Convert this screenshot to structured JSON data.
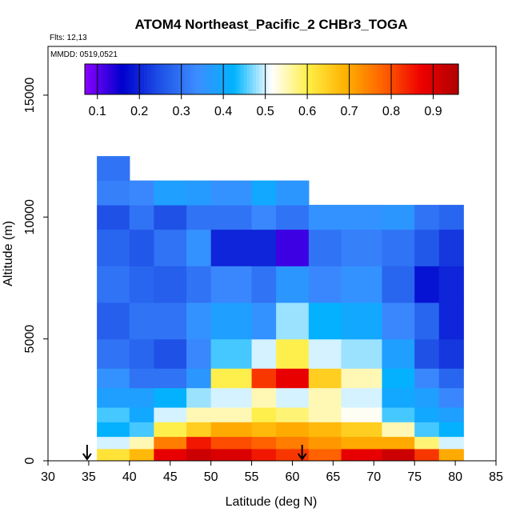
{
  "chart_data": {
    "type": "heatmap",
    "title": "ATOM4 Northeast_Pacific_2 CHBr3_TOGA",
    "flights_label": "Flts: 12,13",
    "dates_label": "MMDD: 0519,0521",
    "xlabel": "Latitude (deg N)",
    "ylabel": "Altitude (m)",
    "xlim": [
      30,
      85
    ],
    "ylim": [
      0,
      17000
    ],
    "x_ticks": [
      "30",
      "35",
      "40",
      "45",
      "50",
      "55",
      "60",
      "65",
      "70",
      "75",
      "80",
      "85"
    ],
    "y_ticks": [
      "0",
      "5000",
      "10000",
      "15000"
    ],
    "colorbar": {
      "range": [
        0.07,
        0.96
      ],
      "ticks": [
        "0.1",
        "0.2",
        "0.3",
        "0.4",
        "0.5",
        "0.6",
        "0.7",
        "0.8",
        "0.9"
      ],
      "colors": [
        "#8b00ff",
        "#0000cd",
        "#1e50e6",
        "#3c8cff",
        "#00b4ff",
        "#ffffff",
        "#ffee44",
        "#ffb000",
        "#ff6000",
        "#ee0000",
        "#b00000"
      ]
    },
    "arrows_lat": [
      34.8,
      61.2
    ],
    "profile_columns": [
      {
        "lat": [
          36.0,
          40.0
        ],
        "layers": [
          [
            0,
            500,
            0.62
          ],
          [
            500,
            1000,
            0.5
          ],
          [
            1000,
            1600,
            0.42
          ],
          [
            1600,
            2200,
            0.45
          ],
          [
            2200,
            3000,
            0.38
          ],
          [
            3000,
            3800,
            0.35
          ],
          [
            3800,
            5000,
            0.3
          ],
          [
            5000,
            6500,
            0.27
          ],
          [
            6500,
            8000,
            0.3
          ],
          [
            8000,
            9500,
            0.28
          ],
          [
            9500,
            10500,
            0.25
          ],
          [
            10500,
            11500,
            0.32
          ],
          [
            11500,
            12500,
            0.3
          ]
        ]
      },
      {
        "lat": [
          40.0,
          43.0
        ],
        "layers": [
          [
            0,
            500,
            0.68
          ],
          [
            500,
            1000,
            0.55
          ],
          [
            1000,
            1600,
            0.45
          ],
          [
            1600,
            2200,
            0.4
          ],
          [
            2200,
            3000,
            0.38
          ],
          [
            3000,
            3800,
            0.3
          ],
          [
            3800,
            5000,
            0.28
          ],
          [
            5000,
            6500,
            0.3
          ],
          [
            6500,
            8000,
            0.28
          ],
          [
            8000,
            9500,
            0.26
          ],
          [
            9500,
            10500,
            0.3
          ],
          [
            10500,
            11500,
            0.33
          ]
        ]
      },
      {
        "lat": [
          43.0,
          47.0
        ],
        "layers": [
          [
            0,
            500,
            0.88
          ],
          [
            500,
            1000,
            0.75
          ],
          [
            1000,
            1600,
            0.6
          ],
          [
            1600,
            2200,
            0.5
          ],
          [
            2200,
            3000,
            0.42
          ],
          [
            3000,
            3800,
            0.3
          ],
          [
            3800,
            5000,
            0.25
          ],
          [
            5000,
            6500,
            0.3
          ],
          [
            6500,
            8000,
            0.27
          ],
          [
            8000,
            9500,
            0.3
          ],
          [
            9500,
            10500,
            0.25
          ],
          [
            10500,
            11500,
            0.38
          ]
        ]
      },
      {
        "lat": [
          47.0,
          50.0
        ],
        "layers": [
          [
            0,
            500,
            0.92
          ],
          [
            500,
            1000,
            0.85
          ],
          [
            1000,
            1600,
            0.65
          ],
          [
            1600,
            2200,
            0.55
          ],
          [
            2200,
            3000,
            0.48
          ],
          [
            3000,
            3800,
            0.36
          ],
          [
            3800,
            5000,
            0.33
          ],
          [
            5000,
            6500,
            0.35
          ],
          [
            6500,
            8000,
            0.3
          ],
          [
            8000,
            9500,
            0.35
          ],
          [
            9500,
            10500,
            0.3
          ],
          [
            10500,
            11500,
            0.37
          ]
        ]
      },
      {
        "lat": [
          50.0,
          55.0
        ],
        "layers": [
          [
            0,
            500,
            0.9
          ],
          [
            500,
            1000,
            0.8
          ],
          [
            1000,
            1600,
            0.7
          ],
          [
            1600,
            2200,
            0.55
          ],
          [
            2200,
            3000,
            0.5
          ],
          [
            3000,
            3800,
            0.6
          ],
          [
            3800,
            5000,
            0.45
          ],
          [
            5000,
            6500,
            0.38
          ],
          [
            6500,
            8000,
            0.33
          ],
          [
            8000,
            9500,
            0.2
          ],
          [
            9500,
            10500,
            0.3
          ],
          [
            10500,
            11500,
            0.35
          ]
        ]
      },
      {
        "lat": [
          55.0,
          58.0
        ],
        "layers": [
          [
            0,
            500,
            0.85
          ],
          [
            500,
            1000,
            0.78
          ],
          [
            1000,
            1600,
            0.68
          ],
          [
            1600,
            2200,
            0.6
          ],
          [
            2200,
            3000,
            0.55
          ],
          [
            3000,
            3800,
            0.82
          ],
          [
            3800,
            5000,
            0.5
          ],
          [
            5000,
            6500,
            0.35
          ],
          [
            6500,
            8000,
            0.3
          ],
          [
            8000,
            9500,
            0.2
          ],
          [
            9500,
            10500,
            0.33
          ],
          [
            10500,
            11500,
            0.4
          ]
        ]
      },
      {
        "lat": [
          58.0,
          62.0
        ],
        "layers": [
          [
            0,
            500,
            0.82
          ],
          [
            500,
            1000,
            0.75
          ],
          [
            1000,
            1600,
            0.7
          ],
          [
            1600,
            2200,
            0.58
          ],
          [
            2200,
            3000,
            0.5
          ],
          [
            3000,
            3800,
            0.88
          ],
          [
            3800,
            5000,
            0.6
          ],
          [
            5000,
            6500,
            0.48
          ],
          [
            6500,
            8000,
            0.36
          ],
          [
            8000,
            9500,
            0.12
          ],
          [
            9500,
            10500,
            0.3
          ],
          [
            10500,
            11500,
            0.36
          ]
        ]
      },
      {
        "lat": [
          62.0,
          66.0
        ],
        "layers": [
          [
            0,
            500,
            0.78
          ],
          [
            500,
            1000,
            0.72
          ],
          [
            1000,
            1600,
            0.68
          ],
          [
            1600,
            2200,
            0.55
          ],
          [
            2200,
            3000,
            0.55
          ],
          [
            3000,
            3800,
            0.65
          ],
          [
            3800,
            5000,
            0.5
          ],
          [
            5000,
            6500,
            0.42
          ],
          [
            6500,
            8000,
            0.33
          ],
          [
            8000,
            9500,
            0.3
          ],
          [
            9500,
            10500,
            0.35
          ]
        ]
      },
      {
        "lat": [
          66.0,
          71.0
        ],
        "layers": [
          [
            0,
            500,
            0.88
          ],
          [
            500,
            1000,
            0.7
          ],
          [
            1000,
            1600,
            0.65
          ],
          [
            1600,
            2200,
            0.52
          ],
          [
            2200,
            3000,
            0.5
          ],
          [
            3000,
            3800,
            0.55
          ],
          [
            3800,
            5000,
            0.48
          ],
          [
            5000,
            6500,
            0.4
          ],
          [
            6500,
            8000,
            0.35
          ],
          [
            8000,
            9500,
            0.32
          ],
          [
            9500,
            10500,
            0.35
          ]
        ]
      },
      {
        "lat": [
          71.0,
          75.0
        ],
        "layers": [
          [
            0,
            500,
            0.92
          ],
          [
            500,
            1000,
            0.7
          ],
          [
            1000,
            1600,
            0.55
          ],
          [
            1600,
            2200,
            0.45
          ],
          [
            2200,
            3000,
            0.4
          ],
          [
            3000,
            3800,
            0.42
          ],
          [
            3800,
            5000,
            0.38
          ],
          [
            5000,
            6500,
            0.33
          ],
          [
            6500,
            8000,
            0.28
          ],
          [
            8000,
            9500,
            0.3
          ],
          [
            9500,
            10500,
            0.36
          ]
        ]
      },
      {
        "lat": [
          75.0,
          78.0
        ],
        "layers": [
          [
            0,
            500,
            0.82
          ],
          [
            500,
            1000,
            0.58
          ],
          [
            1000,
            1600,
            0.45
          ],
          [
            1600,
            2200,
            0.4
          ],
          [
            2200,
            3000,
            0.38
          ],
          [
            3000,
            3800,
            0.33
          ],
          [
            3800,
            5000,
            0.25
          ],
          [
            5000,
            6500,
            0.28
          ],
          [
            6500,
            8000,
            0.18
          ],
          [
            8000,
            9500,
            0.26
          ],
          [
            9500,
            10500,
            0.3
          ]
        ]
      },
      {
        "lat": [
          78.0,
          81.0
        ],
        "layers": [
          [
            0,
            500,
            0.7
          ],
          [
            500,
            1000,
            0.5
          ],
          [
            1000,
            1600,
            0.42
          ],
          [
            1600,
            2200,
            0.38
          ],
          [
            2200,
            3000,
            0.33
          ],
          [
            3000,
            3800,
            0.28
          ],
          [
            3800,
            5000,
            0.22
          ],
          [
            5000,
            6500,
            0.2
          ],
          [
            6500,
            8000,
            0.2
          ],
          [
            8000,
            9500,
            0.22
          ],
          [
            9500,
            10500,
            0.28
          ]
        ]
      }
    ]
  }
}
